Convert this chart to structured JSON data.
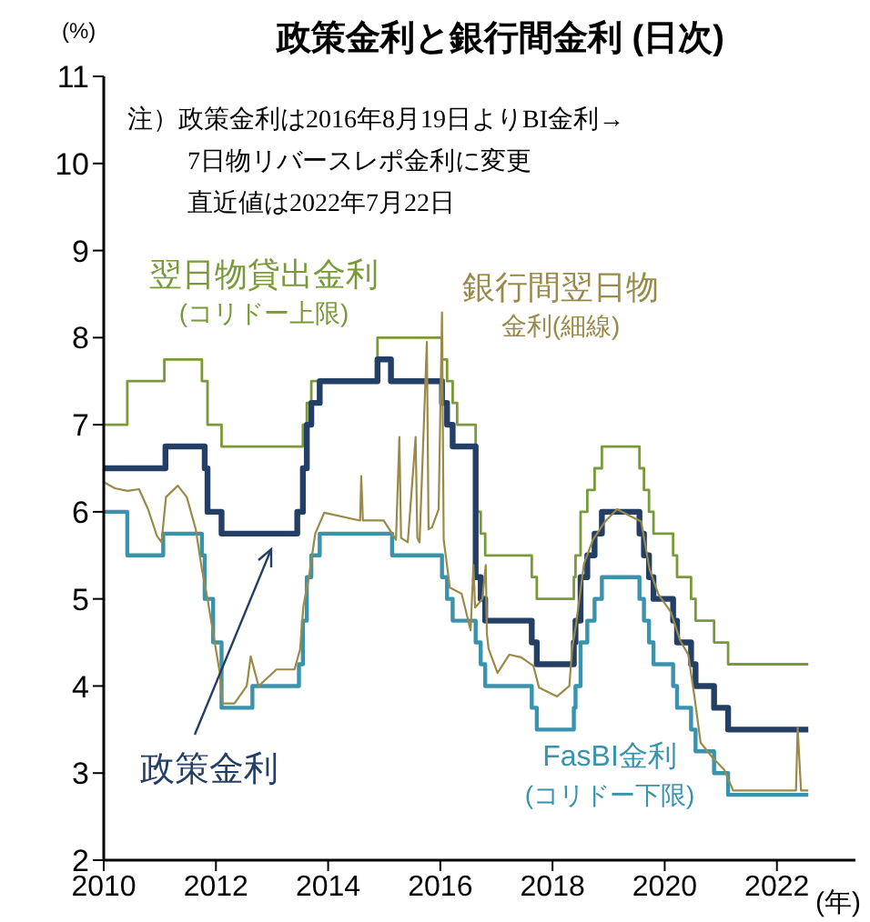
{
  "chart_data": {
    "type": "step",
    "title": "政策金利と銀行間金利 (日次)",
    "ylabel": "(%)",
    "xlabel": "(年)",
    "xlim": [
      2010,
      2023.4
    ],
    "xticks": [
      2010,
      2012,
      2014,
      2016,
      2018,
      2020,
      2022
    ],
    "ylim": [
      2,
      11
    ],
    "yticks": [
      2,
      3,
      4,
      5,
      6,
      7,
      8,
      9,
      10,
      11
    ],
    "annotations": [
      "注）政策金利は2016年8月19日よりBI金利→\n7日物リバースレポ金利に変更",
      "直近値は2022年7月22日"
    ],
    "series": [
      {
        "name": "翌日物貸出金利(コリドー上限)",
        "color": "#7a9a3a",
        "x": [
          2010.0,
          2010.42,
          2011.08,
          2011.75,
          2011.85,
          2012.1,
          2013.55,
          2013.62,
          2013.7,
          2014.88,
          2016.03,
          2016.12,
          2016.22,
          2016.3,
          2016.63,
          2016.72,
          2016.8,
          2017.63,
          2017.72,
          2018.38,
          2018.41,
          2018.5,
          2018.62,
          2018.75,
          2018.88,
          2019.55,
          2019.63,
          2019.72,
          2019.8,
          2020.15,
          2020.22,
          2020.47,
          2020.55,
          2020.88,
          2021.13,
          2022.56
        ],
        "values": [
          7.0,
          7.5,
          7.75,
          7.5,
          7.0,
          6.75,
          7.0,
          7.25,
          7.5,
          8.0,
          7.75,
          7.5,
          7.25,
          7.0,
          6.0,
          5.75,
          5.5,
          5.25,
          5.0,
          5.25,
          5.5,
          6.0,
          6.25,
          6.5,
          6.75,
          6.5,
          6.25,
          6.0,
          5.75,
          5.5,
          5.25,
          5.0,
          4.75,
          4.5,
          4.25,
          4.25
        ]
      },
      {
        "name": "銀行間翌日物金利(細線)",
        "type": "line",
        "color": "#9a8a4a",
        "x": [
          2010.0,
          2010.2,
          2010.42,
          2010.63,
          2010.79,
          2010.95,
          2011.03,
          2011.11,
          2011.32,
          2011.48,
          2011.64,
          2011.75,
          2011.85,
          2011.96,
          2012.07,
          2012.12,
          2012.33,
          2012.55,
          2012.62,
          2012.76,
          2013.08,
          2013.4,
          2013.5,
          2013.56,
          2013.66,
          2013.77,
          2013.93,
          2014.57,
          2014.59,
          2014.62,
          2014.99,
          2015.21,
          2015.27,
          2015.3,
          2015.42,
          2015.56,
          2015.59,
          2015.63,
          2015.76,
          2015.79,
          2015.85,
          2015.97,
          2016.03,
          2016.06,
          2016.17,
          2016.38,
          2016.54,
          2016.59,
          2016.62,
          2016.75,
          2016.81,
          2016.83,
          2016.86,
          2017.02,
          2017.23,
          2017.44,
          2017.66,
          2017.76,
          2018.08,
          2018.3,
          2018.35,
          2018.42,
          2018.56,
          2018.72,
          2018.94,
          2019.15,
          2019.36,
          2019.58,
          2019.73,
          2019.89,
          2020.11,
          2020.27,
          2020.42,
          2020.53,
          2020.64,
          2020.85,
          2021.06,
          2021.22,
          2021.92,
          2022.34,
          2022.37,
          2022.43,
          2022.56
        ],
        "values": [
          6.34,
          6.27,
          6.24,
          6.26,
          6.03,
          5.72,
          5.65,
          6.17,
          6.3,
          6.17,
          5.8,
          5.34,
          5.0,
          4.57,
          4.15,
          3.8,
          3.8,
          4.0,
          4.34,
          4.0,
          4.19,
          4.19,
          4.42,
          4.92,
          5.26,
          5.75,
          5.99,
          5.9,
          6.41,
          5.9,
          5.9,
          5.68,
          6.86,
          5.7,
          5.65,
          6.86,
          5.7,
          5.65,
          7.95,
          5.8,
          5.82,
          6.03,
          8.29,
          5.68,
          5.13,
          5.06,
          4.64,
          5.39,
          4.9,
          5.0,
          5.39,
          4.6,
          4.43,
          4.15,
          4.36,
          4.33,
          4.23,
          3.98,
          3.88,
          4.0,
          4.43,
          4.71,
          5.4,
          5.68,
          5.89,
          6.03,
          5.96,
          5.89,
          5.34,
          5.05,
          4.85,
          4.53,
          4.36,
          3.88,
          3.35,
          3.18,
          3.04,
          2.8,
          2.8,
          2.8,
          3.52,
          2.8,
          2.8
        ]
      },
      {
        "name": "政策金利",
        "color": "#243f66",
        "x": [
          2010.0,
          2011.1,
          2011.8,
          2011.85,
          2012.1,
          2013.45,
          2013.55,
          2013.62,
          2013.7,
          2013.85,
          2014.88,
          2015.12,
          2016.03,
          2016.12,
          2016.22,
          2016.63,
          2016.72,
          2016.8,
          2017.63,
          2017.72,
          2018.38,
          2018.41,
          2018.5,
          2018.62,
          2018.75,
          2018.88,
          2019.55,
          2019.63,
          2019.72,
          2019.8,
          2020.15,
          2020.22,
          2020.47,
          2020.55,
          2020.88,
          2021.13,
          2022.56
        ],
        "values": [
          6.5,
          6.75,
          6.5,
          6.0,
          5.75,
          6.0,
          6.5,
          7.0,
          7.25,
          7.5,
          7.75,
          7.5,
          7.25,
          7.0,
          6.75,
          5.25,
          5.0,
          4.75,
          4.5,
          4.25,
          4.5,
          4.75,
          5.25,
          5.5,
          5.75,
          6.0,
          5.75,
          5.5,
          5.25,
          5.0,
          4.75,
          4.5,
          4.25,
          4.0,
          3.75,
          3.5,
          3.5
        ]
      },
      {
        "name": "FasBI金利(コリドー下限)",
        "color": "#3a93ad",
        "x": [
          2010.0,
          2010.42,
          2011.06,
          2011.75,
          2011.8,
          2011.95,
          2012.1,
          2012.65,
          2013.48,
          2013.55,
          2013.62,
          2013.7,
          2013.85,
          2015.14,
          2016.03,
          2016.12,
          2016.22,
          2016.63,
          2016.72,
          2016.8,
          2017.63,
          2017.72,
          2018.38,
          2018.41,
          2018.5,
          2018.62,
          2018.75,
          2018.88,
          2019.55,
          2019.63,
          2019.72,
          2019.8,
          2020.15,
          2020.22,
          2020.47,
          2020.55,
          2020.88,
          2021.13,
          2022.56
        ],
        "values": [
          6.0,
          5.5,
          5.75,
          5.5,
          5.0,
          4.5,
          3.75,
          4.0,
          4.25,
          4.75,
          5.25,
          5.5,
          5.75,
          5.5,
          5.25,
          5.0,
          4.75,
          4.5,
          4.25,
          4.0,
          3.75,
          3.5,
          3.75,
          4.0,
          4.5,
          4.75,
          5.0,
          5.25,
          5.0,
          4.75,
          4.5,
          4.25,
          4.0,
          3.75,
          3.5,
          3.25,
          3.0,
          2.75,
          2.75
        ]
      }
    ]
  }
}
